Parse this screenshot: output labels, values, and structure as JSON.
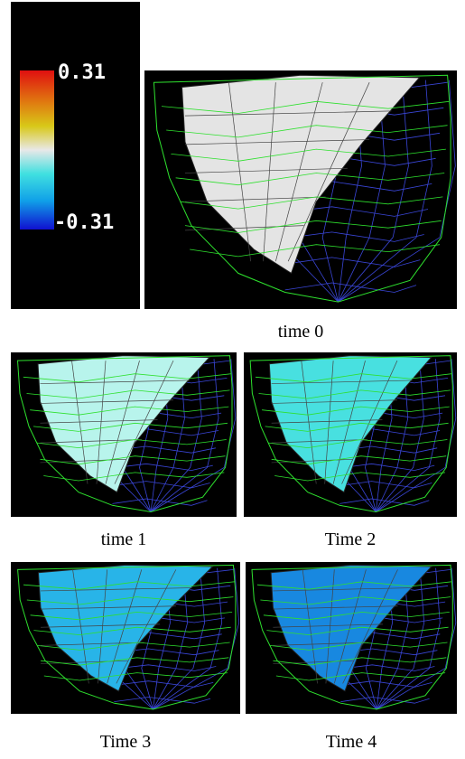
{
  "colorbar": {
    "max_label": "0.31",
    "min_label": "-0.31"
  },
  "panels": [
    {
      "caption": "time 0"
    },
    {
      "caption": "time 1"
    },
    {
      "caption": "Time 2"
    },
    {
      "caption": "Time 3"
    },
    {
      "caption": "Time 4"
    }
  ]
}
